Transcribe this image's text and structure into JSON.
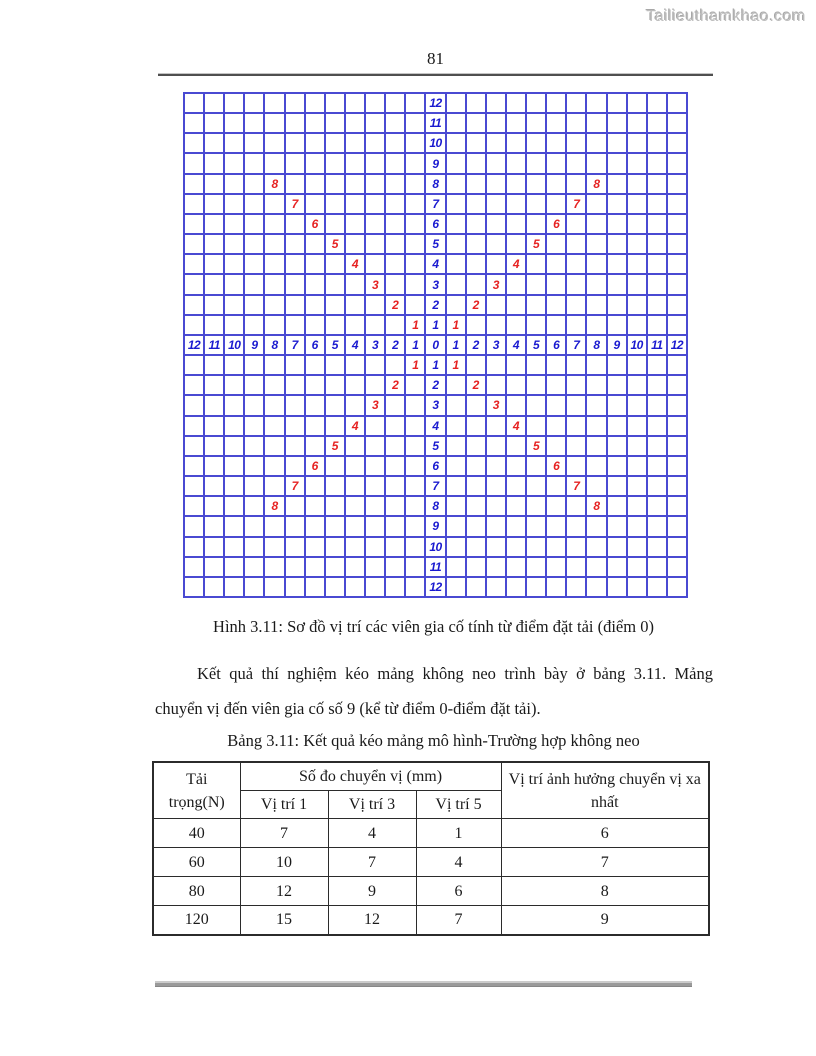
{
  "watermark": "Tailieuthamkhao.com",
  "page": {
    "number": "81"
  },
  "figure": {
    "caption": "Hình 3.11: Sơ đồ vị trí các viên gia cố tính từ điểm đặt tải (điểm 0)",
    "grid_size": 25,
    "center_index": 12,
    "axis_max": 12,
    "diagonal_max": 8,
    "axis_values": [
      12,
      11,
      10,
      9,
      8,
      7,
      6,
      5,
      4,
      3,
      2,
      1,
      0,
      1,
      2,
      3,
      4,
      5,
      6,
      7,
      8,
      9,
      10,
      11,
      12
    ],
    "diagonal_values": [
      1,
      2,
      3,
      4,
      5,
      6,
      7,
      8
    ],
    "axis_number_color": "#1a1ad0",
    "diagonal_number_color": "#e62222",
    "grid_line_color": "#4a4ad2"
  },
  "paragraph": {
    "full_text": "Kết quả thí nghiệm kéo mảng không neo trình bày ở bảng 3.11. Mảng chuyển vị đến viên gia cố số 9 (kể từ điểm 0-điểm đặt tải).",
    "lines": [
      "Kết quả thí nghiệm kéo mảng không neo trình bày ở bảng 3.11. Mảng",
      "chuyển vị đến viên gia cố số 9 (kể từ điểm 0-điểm đặt tải)."
    ]
  },
  "table": {
    "caption": "Bảng 3.11: Kết quả kéo mảng mô hình-Trường hợp không neo",
    "header": {
      "load_col": "Tải trọng(N)",
      "group_col": "Số đo chuyển vị (mm)",
      "sub_cols": [
        "Vị trí 1",
        "Vị trí 3",
        "Vị trí 5"
      ],
      "far_col": "Vị trí ảnh hưởng chuyển vị xa nhất"
    },
    "rows": [
      [
        "40",
        "7",
        "4",
        "1",
        "6"
      ],
      [
        "60",
        "10",
        "7",
        "4",
        "7"
      ],
      [
        "80",
        "12",
        "9",
        "6",
        "8"
      ],
      [
        "120",
        "15",
        "12",
        "7",
        "9"
      ]
    ]
  },
  "chart_data": {
    "type": "table",
    "title": "Bảng 3.11: Kết quả kéo mảng mô hình-Trường hợp không neo",
    "categories": [
      "Tải trọng(N)",
      "Vị trí 1",
      "Vị trí 3",
      "Vị trí 5",
      "Vị trí ảnh hưởng chuyển vị xa nhất"
    ],
    "series": [
      {
        "name": "40",
        "values": [
          7,
          4,
          1,
          6
        ]
      },
      {
        "name": "60",
        "values": [
          10,
          7,
          4,
          7
        ]
      },
      {
        "name": "80",
        "values": [
          12,
          9,
          6,
          8
        ]
      },
      {
        "name": "120",
        "values": [
          15,
          12,
          7,
          9
        ]
      }
    ]
  }
}
